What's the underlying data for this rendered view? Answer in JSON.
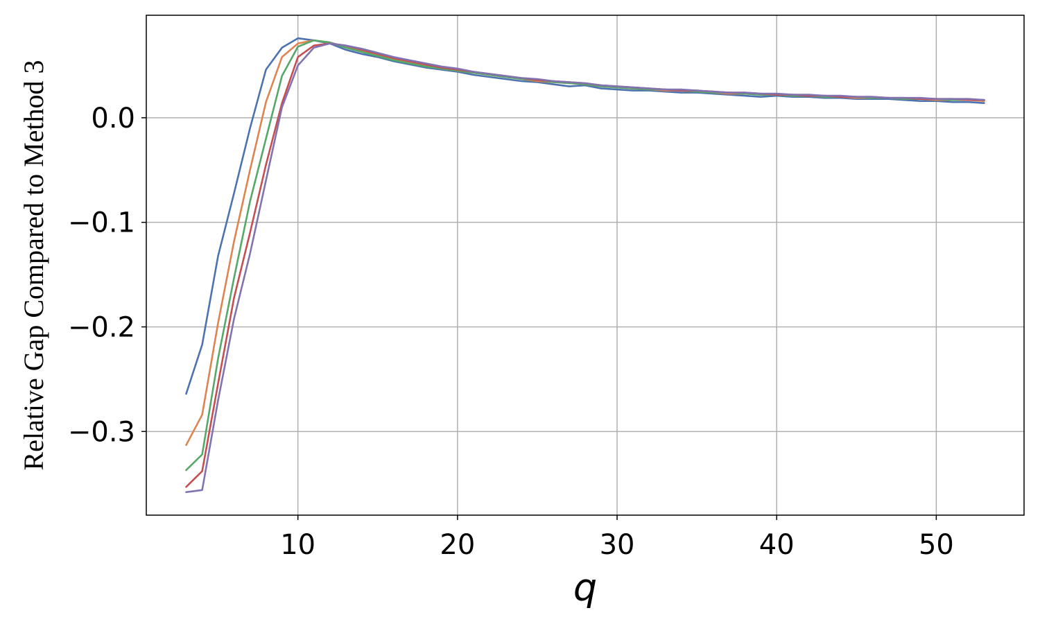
{
  "chart_data": {
    "type": "line",
    "title": "",
    "xlabel": "q",
    "ylabel": "Relative Gap Compared to Method 3",
    "xlim": [
      0.5,
      55.5
    ],
    "ylim": [
      -0.38,
      0.098
    ],
    "xticks": [
      10,
      20,
      30,
      40,
      50
    ],
    "xtick_labels": [
      "10",
      "20",
      "30",
      "40",
      "50"
    ],
    "yticks": [
      0.0,
      -0.1,
      -0.2,
      -0.3
    ],
    "ytick_labels": [
      "0.0",
      "−0.1",
      "−0.2",
      "−0.3"
    ],
    "grid": true,
    "legend": "none",
    "x": [
      3,
      4,
      5,
      6,
      7,
      8,
      9,
      10,
      11,
      12,
      13,
      14,
      15,
      16,
      17,
      18,
      19,
      20,
      21,
      22,
      23,
      24,
      25,
      26,
      27,
      28,
      29,
      30,
      31,
      32,
      33,
      34,
      35,
      36,
      37,
      38,
      39,
      40,
      41,
      42,
      43,
      44,
      45,
      46,
      47,
      48,
      49,
      50,
      51,
      52,
      53
    ],
    "series": [
      {
        "color": "#4c72b0",
        "values": [
          -0.264,
          -0.217,
          -0.132,
          -0.072,
          -0.01,
          0.046,
          0.067,
          0.076,
          0.074,
          0.071,
          0.065,
          0.061,
          0.058,
          0.054,
          0.051,
          0.048,
          0.046,
          0.044,
          0.041,
          0.039,
          0.037,
          0.035,
          0.034,
          0.032,
          0.03,
          0.031,
          0.028,
          0.027,
          0.026,
          0.026,
          0.025,
          0.024,
          0.024,
          0.023,
          0.022,
          0.021,
          0.02,
          0.021,
          0.02,
          0.02,
          0.019,
          0.019,
          0.018,
          0.018,
          0.018,
          0.017,
          0.016,
          0.016,
          0.015,
          0.015,
          0.014
        ]
      },
      {
        "color": "#dd8452",
        "values": [
          -0.313,
          -0.284,
          -0.196,
          -0.118,
          -0.05,
          0.015,
          0.058,
          0.071,
          0.074,
          0.072,
          0.068,
          0.064,
          0.06,
          0.056,
          0.053,
          0.05,
          0.047,
          0.045,
          0.043,
          0.041,
          0.039,
          0.037,
          0.035,
          0.034,
          0.033,
          0.032,
          0.03,
          0.029,
          0.028,
          0.027,
          0.026,
          0.026,
          0.025,
          0.024,
          0.023,
          0.023,
          0.022,
          0.022,
          0.021,
          0.021,
          0.02,
          0.02,
          0.019,
          0.019,
          0.019,
          0.018,
          0.018,
          0.017,
          0.017,
          0.017,
          0.016
        ]
      },
      {
        "color": "#55a868",
        "values": [
          -0.337,
          -0.322,
          -0.23,
          -0.153,
          -0.08,
          -0.02,
          0.04,
          0.068,
          0.074,
          0.072,
          0.067,
          0.063,
          0.059,
          0.055,
          0.052,
          0.049,
          0.047,
          0.045,
          0.043,
          0.041,
          0.039,
          0.037,
          0.036,
          0.034,
          0.033,
          0.032,
          0.03,
          0.029,
          0.028,
          0.027,
          0.027,
          0.026,
          0.025,
          0.024,
          0.024,
          0.023,
          0.022,
          0.022,
          0.021,
          0.021,
          0.02,
          0.02,
          0.02,
          0.019,
          0.019,
          0.018,
          0.018,
          0.018,
          0.017,
          0.017,
          0.017
        ]
      },
      {
        "color": "#c44e52",
        "values": [
          -0.353,
          -0.338,
          -0.254,
          -0.172,
          -0.11,
          -0.045,
          0.014,
          0.058,
          0.069,
          0.071,
          0.069,
          0.065,
          0.061,
          0.057,
          0.054,
          0.051,
          0.048,
          0.046,
          0.044,
          0.042,
          0.04,
          0.038,
          0.036,
          0.035,
          0.034,
          0.033,
          0.031,
          0.03,
          0.029,
          0.028,
          0.027,
          0.026,
          0.026,
          0.025,
          0.024,
          0.024,
          0.023,
          0.022,
          0.022,
          0.021,
          0.021,
          0.02,
          0.02,
          0.02,
          0.019,
          0.019,
          0.018,
          0.018,
          0.018,
          0.017,
          0.017
        ]
      },
      {
        "color": "#8172b2",
        "values": [
          -0.358,
          -0.356,
          -0.27,
          -0.192,
          -0.13,
          -0.06,
          0.01,
          0.05,
          0.067,
          0.071,
          0.069,
          0.066,
          0.062,
          0.058,
          0.055,
          0.052,
          0.049,
          0.047,
          0.044,
          0.042,
          0.04,
          0.038,
          0.037,
          0.035,
          0.034,
          0.033,
          0.031,
          0.03,
          0.029,
          0.028,
          0.027,
          0.027,
          0.026,
          0.025,
          0.024,
          0.024,
          0.023,
          0.023,
          0.022,
          0.022,
          0.021,
          0.021,
          0.02,
          0.02,
          0.019,
          0.019,
          0.019,
          0.018,
          0.018,
          0.018,
          0.017
        ]
      }
    ]
  }
}
